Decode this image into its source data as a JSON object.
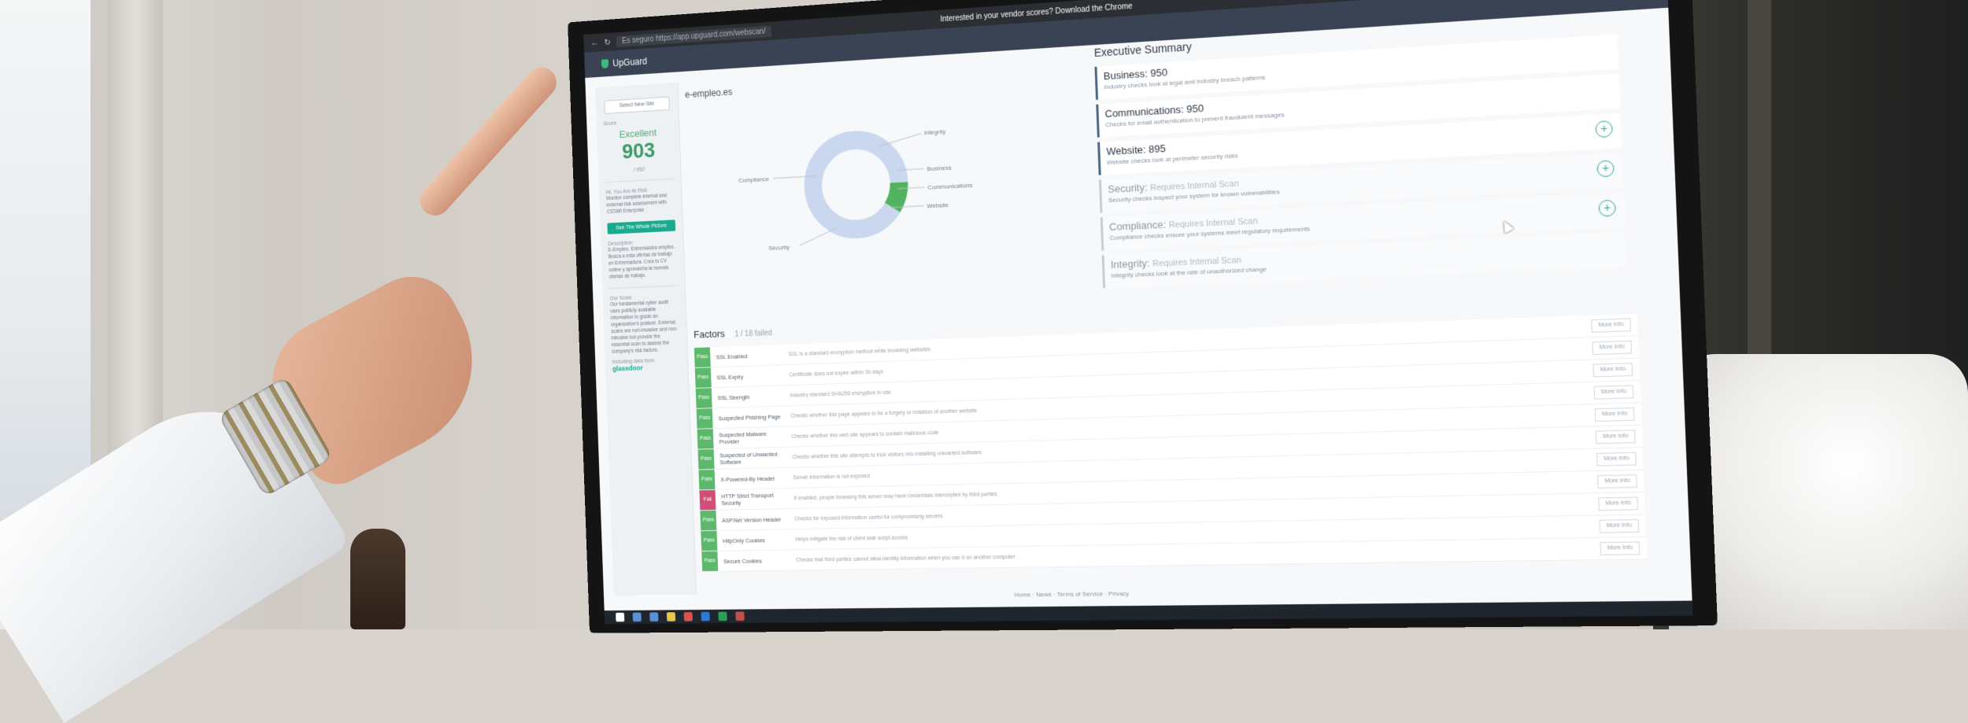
{
  "browser": {
    "address_prefix": "Es seguro",
    "url": "https://app.upguard.com/webscan/",
    "banner_text": "Interested in your vendor scores? Download the Chrome"
  },
  "app": {
    "logo_text": "UpGuard"
  },
  "sidebar": {
    "select_button": "Select New Site",
    "score_label": "Score",
    "rating": "Excellent",
    "score": "903",
    "score_range": "/ 950",
    "section_1_title": "Hi, You Are At Risk",
    "section_1_text": "Monitor complete internal and external risk assessment with CSTAR Enterprise",
    "cta": "See The Whole Picture",
    "description_title": "Description",
    "description_text": "E-Empleo. Entremalotra empleo. Busca a esta ofertas de trabajo en Extremadura. Crea tu CV online y aprovecha la nuevas ofertas de trabajo.",
    "scale_title": "Our Scale",
    "scale_text": "Our fundamental cyber audit uses publicly available information to grade an organization's posture. External scans are non-invasive and non-intrusive but provide the essential scan to assess the company's risk factors.",
    "data_from": "Including data from",
    "glassdoor": "glassdoor"
  },
  "main": {
    "domain": "e-empleo.es",
    "donut_labels": [
      "Integrity",
      "Business",
      "Communications",
      "Website",
      "Security",
      "Compliance"
    ]
  },
  "executive_summary": {
    "title": "Executive Summary",
    "items": [
      {
        "label": "Business:",
        "value": "950",
        "desc": "Industry checks look at legal and industry breach patterns",
        "dim": false,
        "plus": false
      },
      {
        "label": "Communications:",
        "value": "950",
        "desc": "Checks for email authentication to prevent fraudulent messages",
        "dim": false,
        "plus": false
      },
      {
        "label": "Website:",
        "value": "895",
        "desc": "Website checks look at perimeter security risks",
        "dim": false,
        "plus": true
      },
      {
        "label": "Security:",
        "value": "Requires Internal Scan",
        "desc": "Security checks inspect your system for known vulnerabilities",
        "dim": true,
        "plus": true
      },
      {
        "label": "Compliance:",
        "value": "Requires Internal Scan",
        "desc": "Compliance checks ensure your systems meet regulatory requirements",
        "dim": true,
        "plus": true
      },
      {
        "label": "Integrity:",
        "value": "Requires Internal Scan",
        "desc": "Integrity checks look at the rate of unauthorized change",
        "dim": true,
        "plus": false
      }
    ]
  },
  "factors": {
    "title": "Factors",
    "failed": "1 / 18 failed",
    "more_label": "More Info",
    "rows": [
      {
        "status": "Pass",
        "name": "SSL Enabled",
        "desc": "SSL is a standard encryption method while browsing websites"
      },
      {
        "status": "Pass",
        "name": "SSL Expiry",
        "desc": "Certificate does not expire within 30 days"
      },
      {
        "status": "Pass",
        "name": "SSL Strength",
        "desc": "Industry standard SHA256 encryption in use"
      },
      {
        "status": "Pass",
        "name": "Suspected Phishing Page",
        "desc": "Checks whether this page appears to be a forgery or imitation of another website"
      },
      {
        "status": "Pass",
        "name": "Suspected Malware Provider",
        "desc": "Checks whether this web site appears to contain malicious code"
      },
      {
        "status": "Pass",
        "name": "Suspected of Unwanted Software",
        "desc": "Checks whether this site attempts to trick visitors into installing unwanted software"
      },
      {
        "status": "Pass",
        "name": "X-Powered-By Header",
        "desc": "Server information is not exposed"
      },
      {
        "status": "Fail",
        "name": "HTTP Strict Transport Security",
        "desc": "If enabled, people browsing this server may have credentials intercepted by third parties"
      },
      {
        "status": "Pass",
        "name": "ASP.Net Version Header",
        "desc": "Checks for exposed information useful for compromising servers"
      },
      {
        "status": "Pass",
        "name": "HttpOnly Cookies",
        "desc": "Helps mitigate the risk of client side script access"
      },
      {
        "status": "Pass",
        "name": "Secure Cookies",
        "desc": "Checks that third parties cannot steal identity information when you use it on another computer"
      }
    ]
  },
  "footer": {
    "text": "Home · News · Terms of Service · Privacy"
  },
  "colors": {
    "pass": "#5cb96b",
    "fail": "#cf4f76",
    "accent": "#1aaa8f",
    "donut_main": "#c9d7ef",
    "donut_highlight": "#52b35e"
  }
}
